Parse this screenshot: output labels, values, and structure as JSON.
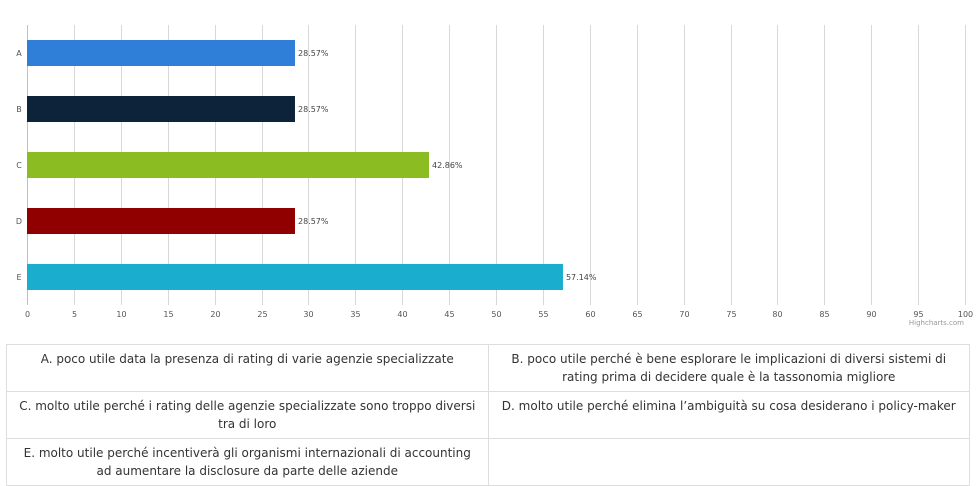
{
  "chart_data": {
    "type": "bar",
    "orientation": "horizontal",
    "categories": [
      "A",
      "B",
      "C",
      "D",
      "E"
    ],
    "values": [
      28.57,
      28.57,
      42.86,
      28.57,
      57.14
    ],
    "data_labels": [
      "28.57%",
      "28.57%",
      "42.86%",
      "28.57%",
      "57.14%"
    ],
    "colors": [
      "#2f7ed8",
      "#0d233a",
      "#8bbc21",
      "#910000",
      "#1aadce"
    ],
    "xlim": [
      0,
      100
    ],
    "ticks": [
      0,
      5,
      10,
      15,
      20,
      25,
      30,
      35,
      40,
      45,
      50,
      55,
      60,
      65,
      70,
      75,
      80,
      85,
      90,
      95,
      100
    ],
    "grid": true,
    "title": "",
    "xlabel": "",
    "ylabel": ""
  },
  "credits": "Highcharts.com",
  "legend_table": {
    "rows": [
      [
        "A. poco utile data la presenza di rating di varie agenzie specializzate",
        "B. poco utile perché è bene esplorare le implicazioni di diversi sistemi di rating prima di decidere quale è la tassonomia migliore"
      ],
      [
        "C. molto utile perché i rating delle agenzie specializzate sono troppo diversi tra di loro",
        "D. molto utile perché elimina l’ambiguità su cosa desiderano i policy-maker"
      ],
      [
        "E. molto utile perché incentiverà gli organismi internazionali di accounting ad aumentare la disclosure da parte delle aziende",
        ""
      ]
    ]
  }
}
